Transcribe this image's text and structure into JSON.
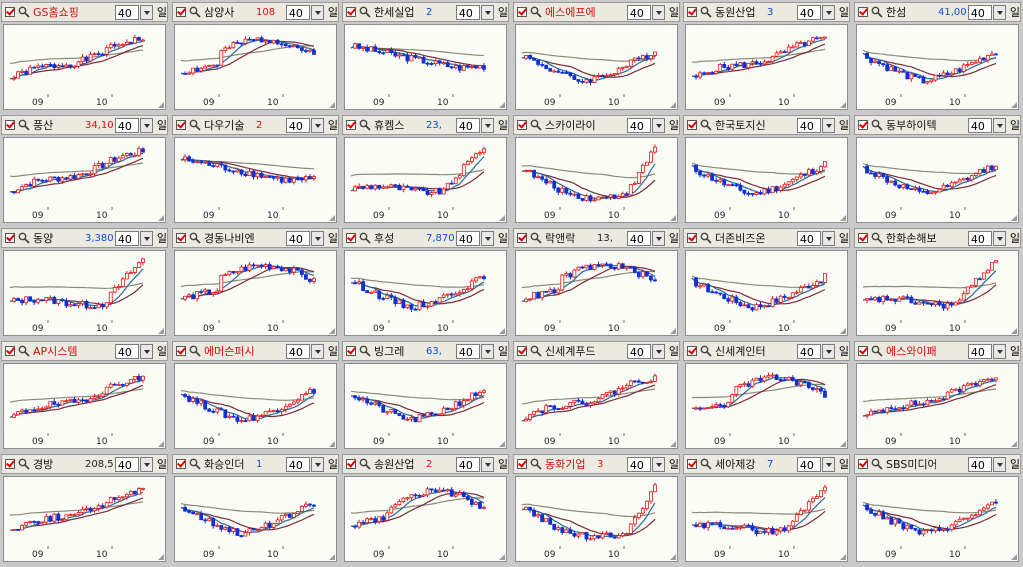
{
  "tiles": [
    {
      "name": "GS홈쇼핑",
      "name_color": "red",
      "checked": true,
      "price": "",
      "price_dir": "nu",
      "period": "40",
      "unit": "일",
      "trend": "up",
      "x_labels": [
        "09",
        "10"
      ],
      "seed": 1
    },
    {
      "name": "삼양사",
      "name_color": "black",
      "checked": true,
      "price": "108",
      "price_dir": "up",
      "period": "40",
      "unit": "일",
      "trend": "rally_mid",
      "x_labels": [
        "09",
        "10"
      ],
      "seed": 2
    },
    {
      "name": "한세실업",
      "name_color": "black",
      "checked": true,
      "price": "2",
      "price_dir": "dn",
      "period": "40",
      "unit": "일",
      "trend": "down",
      "x_labels": [
        "09",
        "10"
      ],
      "seed": 3
    },
    {
      "name": "에스에프에이",
      "name_color": "red",
      "checked": true,
      "price": "",
      "price_dir": "nu",
      "period": "40",
      "unit": "일",
      "trend": "v",
      "x_labels": [
        "09",
        "10"
      ],
      "seed": 4
    },
    {
      "name": "동원산업",
      "name_color": "black",
      "checked": true,
      "price": "3",
      "price_dir": "dn",
      "period": "40",
      "unit": "일",
      "trend": "up",
      "x_labels": [
        "09",
        "10"
      ],
      "seed": 5
    },
    {
      "name": "한섬",
      "name_color": "black",
      "checked": true,
      "price": "41,00",
      "price_dir": "dn",
      "period": "40",
      "unit": "일",
      "trend": "v",
      "x_labels": [
        "09",
        "10"
      ],
      "seed": 6
    },
    {
      "name": "풍산",
      "name_color": "black",
      "checked": true,
      "price": "34,10",
      "price_dir": "up",
      "period": "40",
      "unit": "일",
      "trend": "up",
      "x_labels": [
        "09",
        "10"
      ],
      "seed": 7
    },
    {
      "name": "다우기술",
      "name_color": "black",
      "checked": true,
      "price": "2",
      "price_dir": "up",
      "period": "40",
      "unit": "일",
      "trend": "down",
      "x_labels": [
        "09",
        "10"
      ],
      "seed": 8
    },
    {
      "name": "휴켐스",
      "name_color": "black",
      "checked": true,
      "price": "23,",
      "price_dir": "dn",
      "period": "40",
      "unit": "일",
      "trend": "late",
      "x_labels": [
        "09",
        "10"
      ],
      "seed": 9
    },
    {
      "name": "스카이라이프",
      "name_color": "black",
      "checked": true,
      "price": "",
      "price_dir": "nu",
      "period": "40",
      "unit": "일",
      "trend": "down_late",
      "x_labels": [
        "09",
        "10"
      ],
      "seed": 10
    },
    {
      "name": "한국토지신탁",
      "name_color": "black",
      "checked": true,
      "price": "",
      "price_dir": "nu",
      "period": "40",
      "unit": "일",
      "trend": "v",
      "x_labels": [
        "09",
        "10"
      ],
      "seed": 11
    },
    {
      "name": "동부하이텍",
      "name_color": "black",
      "checked": true,
      "price": "",
      "price_dir": "nu",
      "period": "40",
      "unit": "일",
      "trend": "v",
      "x_labels": [
        "09",
        "10"
      ],
      "seed": 12
    },
    {
      "name": "동양",
      "name_color": "black",
      "checked": true,
      "price": "3,380",
      "price_dir": "dn",
      "period": "40",
      "unit": "일",
      "trend": "late",
      "x_labels": [
        "09",
        "10"
      ],
      "seed": 13
    },
    {
      "name": "경동나비엔",
      "name_color": "black",
      "checked": true,
      "price": "",
      "price_dir": "nu",
      "period": "40",
      "unit": "일",
      "trend": "rally_mid",
      "x_labels": [
        "09",
        "10"
      ],
      "seed": 14
    },
    {
      "name": "후성",
      "name_color": "black",
      "checked": true,
      "price": "7,870",
      "price_dir": "dn",
      "period": "40",
      "unit": "일",
      "trend": "v",
      "x_labels": [
        "09",
        "10"
      ],
      "seed": 15
    },
    {
      "name": "락앤락",
      "name_color": "black",
      "checked": true,
      "price": "13,",
      "price_dir": "nu",
      "period": "40",
      "unit": "일",
      "trend": "rally_mid",
      "x_labels": [
        "09",
        "10"
      ],
      "seed": 16
    },
    {
      "name": "더존비즈온",
      "name_color": "black",
      "checked": true,
      "price": "",
      "price_dir": "nu",
      "period": "40",
      "unit": "일",
      "trend": "v",
      "x_labels": [
        "09",
        "10"
      ],
      "seed": 17
    },
    {
      "name": "한화손해보험",
      "name_color": "black",
      "checked": true,
      "price": "",
      "price_dir": "nu",
      "period": "40",
      "unit": "일",
      "trend": "late",
      "x_labels": [
        "09",
        "10"
      ],
      "seed": 18
    },
    {
      "name": "AP시스템",
      "name_color": "red",
      "checked": true,
      "price": "",
      "price_dir": "nu",
      "period": "40",
      "unit": "일",
      "trend": "up",
      "x_labels": [
        "09",
        "10"
      ],
      "seed": 19
    },
    {
      "name": "에머슨퍼시픽",
      "name_color": "red",
      "checked": true,
      "price": "",
      "price_dir": "nu",
      "period": "40",
      "unit": "일",
      "trend": "v",
      "x_labels": [
        "09",
        "10"
      ],
      "seed": 20
    },
    {
      "name": "빙그레",
      "name_color": "black",
      "checked": true,
      "price": "63,",
      "price_dir": "dn",
      "period": "40",
      "unit": "일",
      "trend": "v",
      "x_labels": [
        "09",
        "10"
      ],
      "seed": 21
    },
    {
      "name": "신세계푸드",
      "name_color": "black",
      "checked": true,
      "price": "",
      "price_dir": "nu",
      "period": "40",
      "unit": "일",
      "trend": "up",
      "x_labels": [
        "09",
        "10"
      ],
      "seed": 22
    },
    {
      "name": "신세계인터내",
      "name_color": "black",
      "checked": true,
      "price": "",
      "price_dir": "nu",
      "period": "40",
      "unit": "일",
      "trend": "rally_mid",
      "x_labels": [
        "09",
        "10"
      ],
      "seed": 23
    },
    {
      "name": "에스와이패널",
      "name_color": "red",
      "checked": true,
      "price": "",
      "price_dir": "nu",
      "period": "40",
      "unit": "일",
      "trend": "up",
      "x_labels": [
        "09",
        "10"
      ],
      "seed": 24
    },
    {
      "name": "경방",
      "name_color": "black",
      "checked": true,
      "price": "208,5",
      "price_dir": "nu",
      "period": "40",
      "unit": "일",
      "trend": "up",
      "x_labels": [
        "09",
        "10"
      ],
      "seed": 25
    },
    {
      "name": "화승인더",
      "name_color": "black",
      "checked": true,
      "price": "1",
      "price_dir": "dn",
      "period": "40",
      "unit": "일",
      "trend": "v",
      "x_labels": [
        "09",
        "10"
      ],
      "seed": 26
    },
    {
      "name": "송원산업",
      "name_color": "black",
      "checked": true,
      "price": "2",
      "price_dir": "up",
      "period": "40",
      "unit": "일",
      "trend": "rally_mid",
      "x_labels": [
        "09",
        "10"
      ],
      "seed": 27
    },
    {
      "name": "동화기업",
      "name_color": "red",
      "checked": true,
      "price": "3",
      "price_dir": "up",
      "period": "40",
      "unit": "일",
      "trend": "down_late",
      "x_labels": [
        "09",
        "10"
      ],
      "seed": 28
    },
    {
      "name": "세아제강",
      "name_color": "black",
      "checked": true,
      "price": "7",
      "price_dir": "dn",
      "period": "40",
      "unit": "일",
      "trend": "late",
      "x_labels": [
        "09",
        "10"
      ],
      "seed": 29
    },
    {
      "name": "SBS미디어홀",
      "name_color": "black",
      "checked": true,
      "price": "",
      "price_dir": "nu",
      "period": "40",
      "unit": "일",
      "trend": "v",
      "x_labels": [
        "09",
        "10"
      ],
      "seed": 30
    }
  ],
  "colors": {
    "candle_up": "#e01818",
    "candle_down": "#1030d0",
    "ma_short": "#2a6a9a",
    "ma_mid": "#7a2a3a",
    "ma_long": "#8a8a78"
  }
}
